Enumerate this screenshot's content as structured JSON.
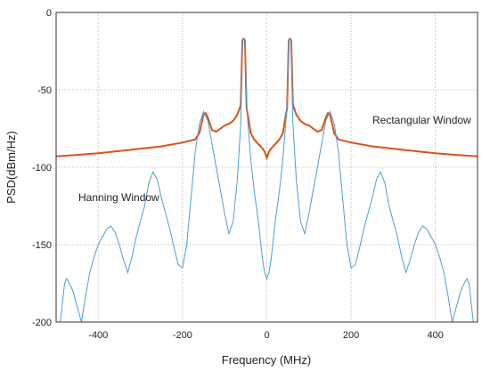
{
  "chart_data": {
    "type": "line",
    "xlabel": "Frequency (MHz)",
    "ylabel": "PSD(dBm/Hz)",
    "xlim": [
      -500,
      500
    ],
    "ylim": [
      -200,
      0
    ],
    "xticks": [
      -400,
      -200,
      0,
      200,
      400
    ],
    "yticks": [
      0,
      -50,
      -100,
      -150,
      -200
    ],
    "xtick_labels": [
      "-400",
      "-200",
      "0",
      "200",
      "400"
    ],
    "ytick_labels": [
      "0",
      "-50",
      "-100",
      "-150",
      "-200"
    ],
    "grid": true,
    "annotations": [
      {
        "text": "Rectangular Window",
        "x": 250,
        "y": -70
      },
      {
        "text": "Hanning Window",
        "x": -450,
        "y": -122
      }
    ],
    "series": [
      {
        "name": "Rectangular Window",
        "color": "#d95319",
        "x": [
          -500,
          -450,
          -400,
          -350,
          -300,
          -250,
          -200,
          -170,
          -160,
          -150,
          -145,
          -140,
          -130,
          -120,
          -110,
          -100,
          -90,
          -80,
          -70,
          -62,
          -58,
          -55,
          -52,
          -48,
          -44,
          -38,
          -30,
          -20,
          -10,
          -5,
          0,
          5,
          10,
          20,
          30,
          38,
          44,
          48,
          52,
          55,
          58,
          62,
          70,
          80,
          90,
          100,
          110,
          120,
          130,
          140,
          145,
          150,
          160,
          170,
          200,
          250,
          300,
          350,
          400,
          450,
          500
        ],
        "y": [
          -93,
          -92,
          -91,
          -89.5,
          -88,
          -86.5,
          -84,
          -82,
          -78,
          -66,
          -65,
          -68,
          -76,
          -77,
          -75,
          -73,
          -72,
          -70,
          -66,
          -60,
          -18,
          -17,
          -18,
          -62,
          -68,
          -78,
          -82,
          -85,
          -88,
          -90,
          -94,
          -90,
          -88,
          -85,
          -82,
          -78,
          -68,
          -62,
          -18,
          -17,
          -18,
          -60,
          -66,
          -70,
          -72,
          -73,
          -75,
          -77,
          -76,
          -68,
          -65,
          -66,
          -78,
          -82,
          -84,
          -86.5,
          -88,
          -89.5,
          -91,
          -92,
          -93
        ]
      },
      {
        "name": "Hanning Window",
        "color": "#4b9fd5",
        "x": [
          -490,
          -480,
          -475,
          -470,
          -460,
          -450,
          -440,
          -430,
          -420,
          -410,
          -400,
          -390,
          -380,
          -370,
          -360,
          -350,
          -340,
          -330,
          -320,
          -310,
          -300,
          -290,
          -280,
          -270,
          -260,
          -250,
          -240,
          -230,
          -220,
          -210,
          -200,
          -190,
          -180,
          -170,
          -160,
          -150,
          -140,
          -130,
          -120,
          -110,
          -100,
          -90,
          -80,
          -70,
          -62,
          -58,
          -55,
          -52,
          -48,
          -44,
          -38,
          -30,
          -20,
          -10,
          -5,
          0,
          5,
          10,
          20,
          30,
          38,
          44,
          48,
          52,
          55,
          58,
          62,
          70,
          80,
          90,
          100,
          110,
          120,
          130,
          140,
          150,
          160,
          170,
          180,
          190,
          200,
          210,
          220,
          230,
          240,
          250,
          260,
          270,
          280,
          290,
          300,
          310,
          320,
          330,
          340,
          350,
          360,
          370,
          380,
          390,
          400,
          410,
          420,
          430,
          440,
          450,
          460,
          470,
          475,
          480,
          490,
          500
        ],
        "y": [
          -200,
          -175,
          -172,
          -174,
          -180,
          -190,
          -200,
          -183,
          -168,
          -158,
          -150,
          -145,
          -140,
          -138,
          -142,
          -150,
          -160,
          -168,
          -158,
          -145,
          -135,
          -125,
          -110,
          -103,
          -108,
          -120,
          -130,
          -140,
          -152,
          -163,
          -165,
          -150,
          -120,
          -90,
          -72,
          -64,
          -70,
          -85,
          -100,
          -115,
          -130,
          -143,
          -135,
          -108,
          -72,
          -18,
          -17,
          -18,
          -60,
          -75,
          -95,
          -115,
          -135,
          -160,
          -168,
          -172,
          -168,
          -160,
          -135,
          -115,
          -95,
          -75,
          -60,
          -18,
          -17,
          -18,
          -72,
          -108,
          -135,
          -143,
          -130,
          -115,
          -100,
          -85,
          -70,
          -64,
          -72,
          -90,
          -120,
          -150,
          -165,
          -163,
          -152,
          -140,
          -130,
          -120,
          -108,
          -103,
          -110,
          -125,
          -135,
          -145,
          -158,
          -168,
          -160,
          -150,
          -142,
          -138,
          -140,
          -145,
          -150,
          -158,
          -168,
          -183,
          -200,
          -190,
          -180,
          -174,
          -172,
          -175,
          -200,
          -200
        ]
      }
    ]
  }
}
